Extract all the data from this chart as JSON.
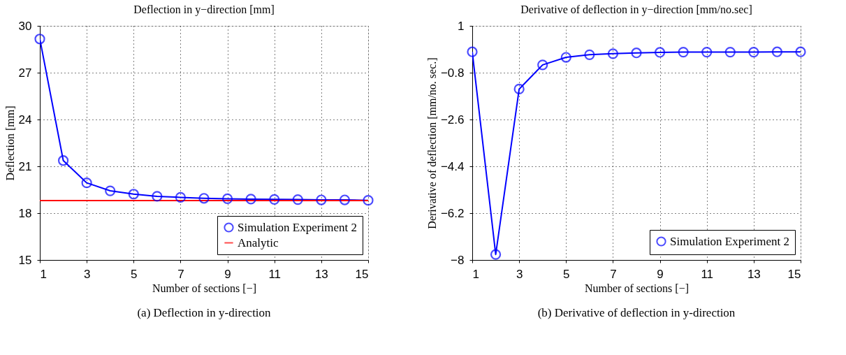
{
  "chart_data": [
    {
      "type": "line",
      "title": "Deflection in y−direction [mm]",
      "xlabel": "Number of sections [−]",
      "ylabel": "Deflection [mm]",
      "x": [
        1,
        2,
        3,
        4,
        5,
        6,
        7,
        8,
        9,
        10,
        11,
        12,
        13,
        14,
        15
      ],
      "series": [
        {
          "name": "Simulation Experiment 2",
          "color": "#0000ff",
          "marker": "circle",
          "values": [
            29.16,
            21.37,
            19.94,
            19.43,
            19.22,
            19.08,
            19.01,
            18.95,
            18.92,
            18.9,
            18.88,
            18.87,
            18.85,
            18.85,
            18.82
          ]
        },
        {
          "name": "Analytic",
          "color": "#ff0000",
          "marker": "none",
          "x": [
            1,
            15
          ],
          "values": [
            18.81,
            18.81
          ]
        }
      ],
      "xlim": [
        1,
        15
      ],
      "xticks": [
        1,
        3,
        5,
        7,
        9,
        11,
        13,
        15
      ],
      "ylim": [
        15,
        30
      ],
      "yticks": [
        15,
        18,
        21,
        24,
        27,
        30
      ],
      "grid": true,
      "legend": "bottom right",
      "line_style": "solid",
      "annotations": [
        "(a) Deflection in y-direction"
      ]
    },
    {
      "type": "line",
      "title": "Derivative of deflection in y−direction [mm/no.sec]",
      "xlabel": "Number of sections [−]",
      "ylabel": "Derivative of deflection [mm/no. sec.]",
      "x": [
        1,
        2,
        3,
        4,
        5,
        6,
        7,
        8,
        9,
        10,
        11,
        12,
        13,
        14,
        15
      ],
      "series": [
        {
          "name": "Simulation Experiment 2",
          "color": "#0000ff",
          "marker": "circle",
          "values": [
            0,
            -7.79,
            -1.43,
            -0.5,
            -0.21,
            -0.11,
            -0.07,
            -0.04,
            -0.02,
            -0.01,
            -0.01,
            -0.01,
            -0.01,
            0,
            0
          ]
        }
      ],
      "xlim": [
        1,
        15
      ],
      "xticks": [
        1,
        3,
        5,
        7,
        9,
        11,
        13,
        15
      ],
      "ylim": [
        -8,
        1
      ],
      "yticks": [
        {
          "value": -8,
          "label": "−8"
        },
        {
          "value": -6.2,
          "label": "−6.2"
        },
        {
          "value": -4.4,
          "label": "−4.4"
        },
        {
          "value": -2.6,
          "label": "−2.6"
        },
        {
          "value": -0.8,
          "label": "−0.8"
        },
        1
      ],
      "grid": true,
      "legend": "bottom right",
      "line_style": "solid",
      "annotations": [
        "(b) Derivative of deflection in y-direction"
      ]
    }
  ]
}
